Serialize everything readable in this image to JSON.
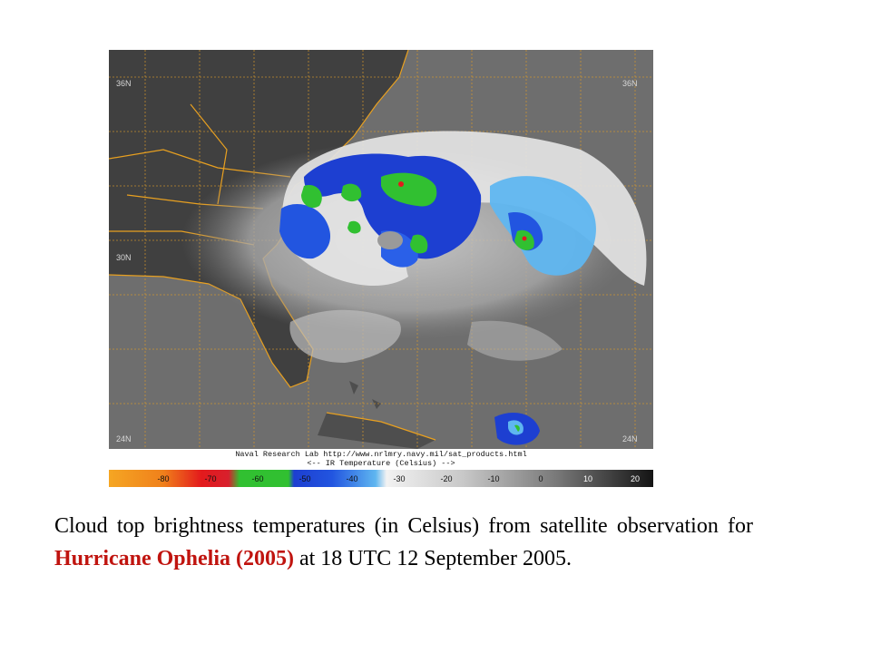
{
  "figure": {
    "credit": "Naval Research Lab http://www.nrlmry.navy.mil/sat_products.html",
    "scale_label": "<--    IR Temperature (Celsius)    -->",
    "lat_labels": [
      "36N",
      "36N",
      "30N",
      "24N",
      "24N"
    ],
    "colorbar": {
      "ticks": [
        "-80",
        "-70",
        "-60",
        "-50",
        "-40",
        "-30",
        "-20",
        "-10",
        "0",
        "10",
        "20"
      ],
      "colors": {
        "coldest": "#f5a623",
        "red": "#e31a1c",
        "green": "#31c031",
        "blue": "#1d3fd1",
        "light_blue": "#5fb6f0",
        "white": "#f2f2f2",
        "gray": "#7a7a7a",
        "dark": "#141414"
      }
    }
  },
  "caption": {
    "before": "Cloud top brightness temperatures (in Celsius) from satellite observation for ",
    "highlight": "Hurricane Ophelia (2005)",
    "after": " at 18 UTC 12 September 2005."
  }
}
